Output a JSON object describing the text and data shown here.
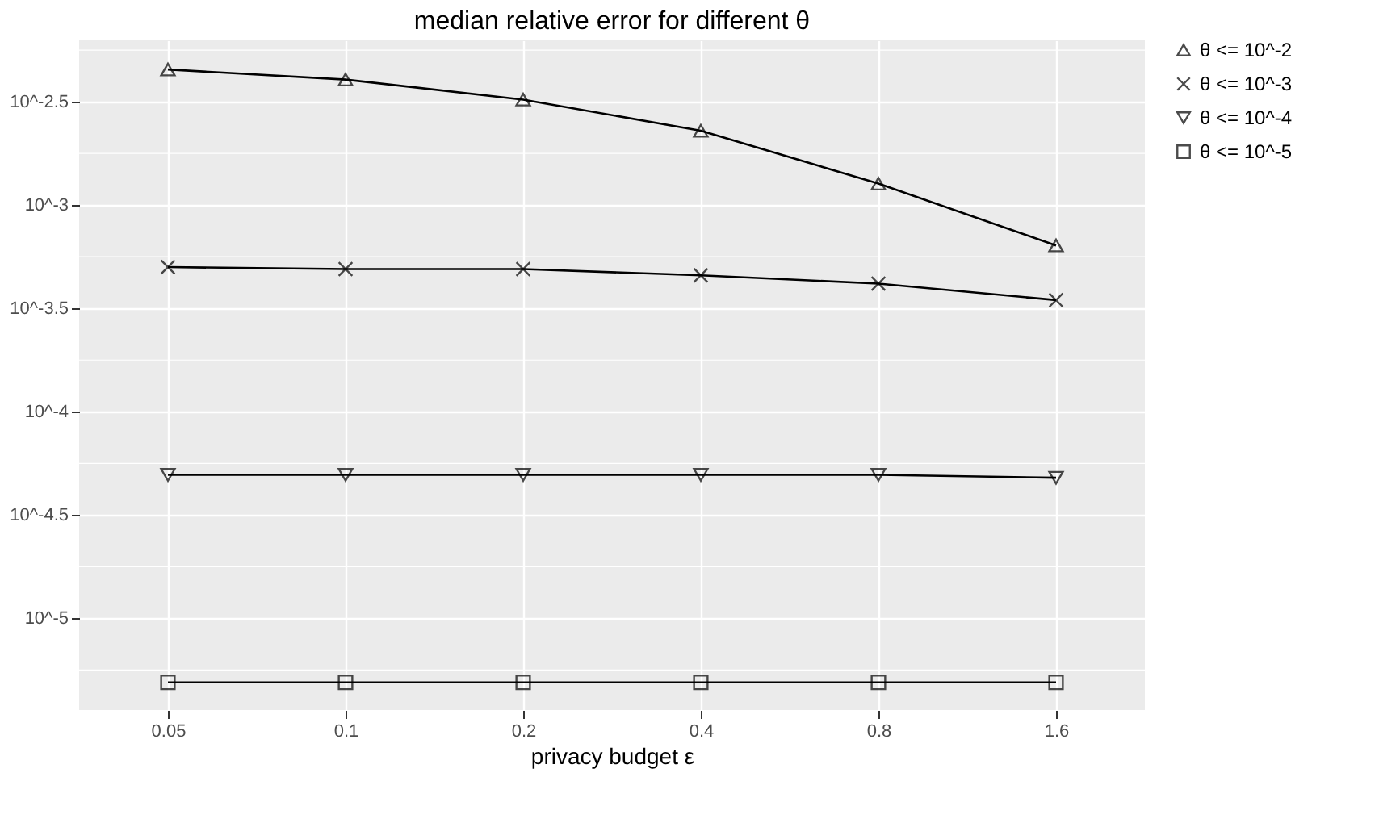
{
  "chart_data": {
    "type": "line",
    "title": "median relative error for different θ",
    "xlabel": "privacy budget ε",
    "categories": [
      "0.05",
      "0.1",
      "0.2",
      "0.4",
      "0.8",
      "1.6"
    ],
    "series": [
      {
        "name": "θ <= 10^-2",
        "color": "#000000",
        "marker": "triangle",
        "values": [
          0.00453,
          0.00405,
          0.00324,
          0.00229,
          0.00127,
          0.000638
        ]
      },
      {
        "name": "θ <= 10^-3",
        "color": "#000000",
        "marker": "cross",
        "values": [
          0.000501,
          0.00049,
          0.00049,
          0.000457,
          0.000417,
          0.000347
        ]
      },
      {
        "name": "θ <= 10^-4",
        "color": "#000000",
        "marker": "triangle-down",
        "values": [
          4.95e-05,
          4.95e-05,
          4.95e-05,
          4.95e-05,
          4.95e-05,
          4.79e-05
        ]
      },
      {
        "name": "θ <= 10^-5",
        "color": "#000000",
        "marker": "square",
        "values": [
          4.9e-06,
          4.9e-06,
          4.9e-06,
          4.9e-06,
          4.9e-06,
          4.9e-06
        ]
      }
    ],
    "log": true,
    "ylim": [
      3.6e-06,
      0.00627
    ],
    "yticks": [
      {
        "value": 0.00316228,
        "label": "10^-2.5"
      },
      {
        "value": 0.001,
        "label": "10^-3"
      },
      {
        "value": 0.000316228,
        "label": "10^-3.5"
      },
      {
        "value": 0.0001,
        "label": "10^-4"
      },
      {
        "value": 3.16228e-05,
        "label": "10^-4.5"
      },
      {
        "value": 1e-05,
        "label": "10^-5"
      }
    ],
    "grid": true,
    "legend": "right",
    "line_style": "solid"
  }
}
